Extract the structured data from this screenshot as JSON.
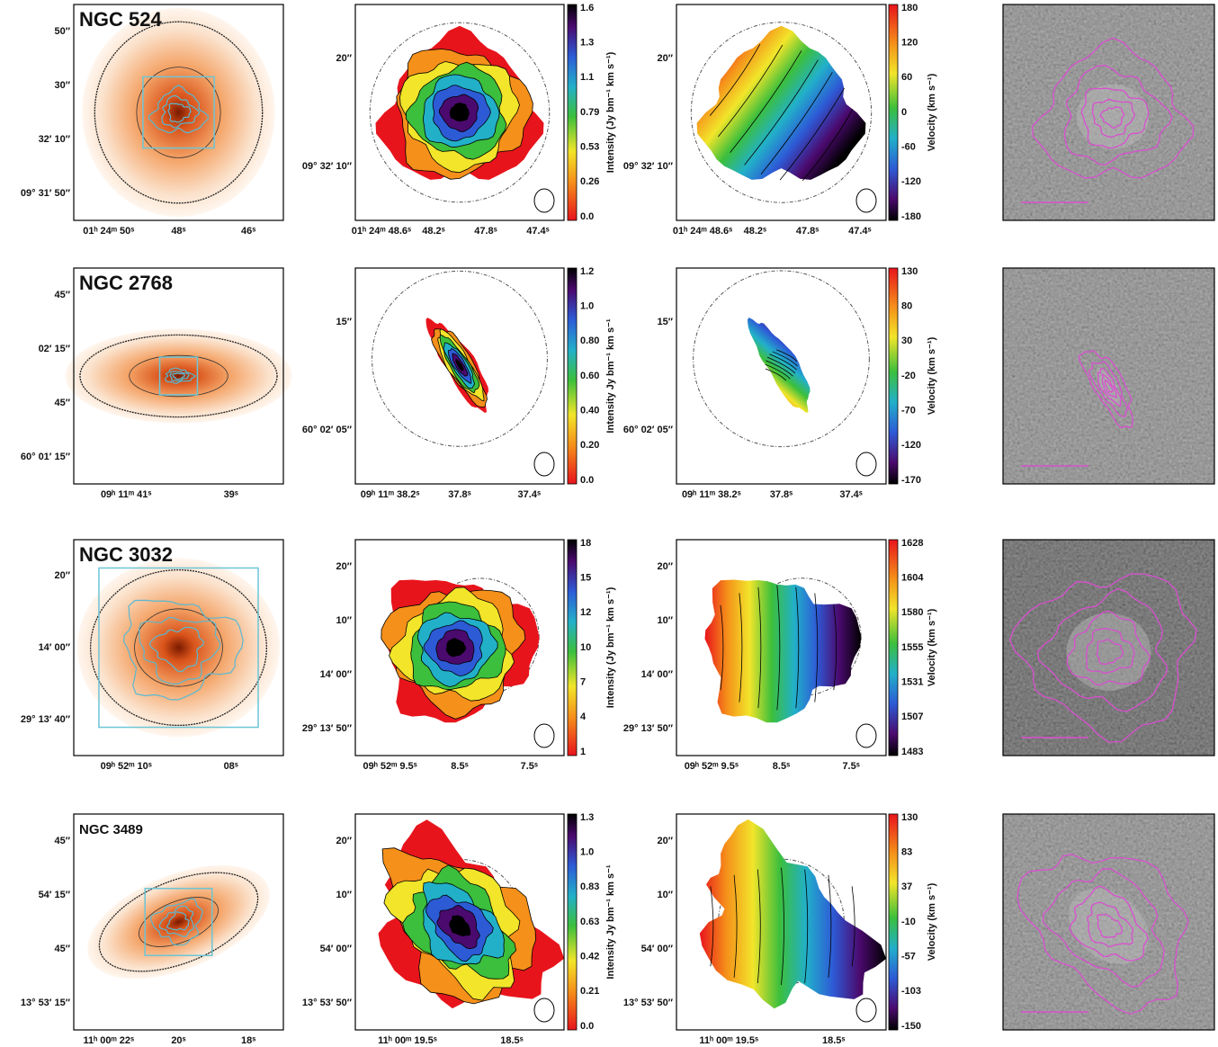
{
  "rows": [
    {
      "name": "NGC 524",
      "optical": {
        "yticks": [
          "50″",
          "30″",
          "32′ 10″",
          "09° 31′ 50″"
        ],
        "xticks": [
          "01ʰ 24ᵐ 50ˢ",
          "48ˢ",
          "46ˢ"
        ]
      },
      "maps": {
        "yticks": [
          "20″",
          "09° 32′ 10″"
        ],
        "xticks": [
          "01ʰ 24ᵐ 48.6ˢ",
          "48.2ˢ",
          "47.8ˢ",
          "47.4ˢ"
        ]
      },
      "intensity_bar": {
        "label": "Intensity (Jy bm⁻¹ km s⁻¹)",
        "ticks": [
          "1.6",
          "1.3",
          "1.1",
          "0.79",
          "0.53",
          "0.26",
          "0.0"
        ]
      },
      "velocity_bar": {
        "label": "Velocity (km s⁻¹)",
        "ticks": [
          "180",
          "120",
          "60",
          "0",
          "-60",
          "-120",
          "-180"
        ]
      }
    },
    {
      "name": "NGC 2768",
      "optical": {
        "yticks": [
          "45″",
          "02′ 15″",
          "45″",
          "60° 01′ 15″"
        ],
        "xticks": [
          "09ʰ 11ᵐ 41ˢ",
          "39ˢ"
        ]
      },
      "maps": {
        "yticks": [
          "15″",
          "60° 02′ 05″"
        ],
        "xticks": [
          "09ʰ 11ᵐ 38.2ˢ",
          "37.8ˢ",
          "37.4ˢ"
        ]
      },
      "intensity_bar": {
        "label": "Intensity Jy bm⁻¹ km s⁻¹",
        "ticks": [
          "1.2",
          "1.0",
          "0.80",
          "0.60",
          "0.40",
          "0.20",
          "0.0"
        ]
      },
      "velocity_bar": {
        "label": "Velocity (km s⁻¹)",
        "ticks": [
          "130",
          "80",
          "30",
          "-20",
          "-70",
          "-120",
          "-170"
        ]
      }
    },
    {
      "name": "NGC 3032",
      "optical": {
        "yticks": [
          "20″",
          "14′ 00″",
          "29° 13′ 40″"
        ],
        "xticks": [
          "09ʰ 52ᵐ 10ˢ",
          "08ˢ"
        ]
      },
      "maps": {
        "yticks": [
          "20″",
          "10″",
          "14′ 00″",
          "29° 13′ 50″"
        ],
        "xticks": [
          "09ʰ 52ᵐ 9.5ˢ",
          "8.5ˢ",
          "7.5ˢ"
        ]
      },
      "intensity_bar": {
        "label": "Intensity (Jy bm⁻¹ km s⁻¹)",
        "ticks": [
          "18",
          "15",
          "12",
          "10",
          "7",
          "4",
          "1"
        ]
      },
      "velocity_bar": {
        "label": "Velocity (km s⁻¹)",
        "ticks": [
          "1628",
          "1604",
          "1580",
          "1555",
          "1531",
          "1507",
          "1483"
        ]
      }
    },
    {
      "name": "NGC 3489",
      "optical": {
        "yticks": [
          "45″",
          "54′ 15″",
          "45″",
          "13° 53′ 15″"
        ],
        "xticks": [
          "11ʰ 00ᵐ 22ˢ",
          "20ˢ",
          "18ˢ"
        ]
      },
      "maps": {
        "yticks": [
          "20″",
          "10″",
          "54′ 00″",
          "13° 53′ 50″"
        ],
        "xticks": [
          "11ʰ 00ᵐ 19.5ˢ",
          "18.5ˢ"
        ]
      },
      "intensity_bar": {
        "label": "Intensity Jy bm⁻¹ km s⁻¹",
        "ticks": [
          "1.3",
          "1.0",
          "0.83",
          "0.63",
          "0.42",
          "0.21",
          "0.0"
        ]
      },
      "velocity_bar": {
        "label": "Velocity (km s⁻¹)",
        "ticks": [
          "130",
          "83",
          "37",
          "-10",
          "-57",
          "-103",
          "-150"
        ]
      }
    }
  ]
}
